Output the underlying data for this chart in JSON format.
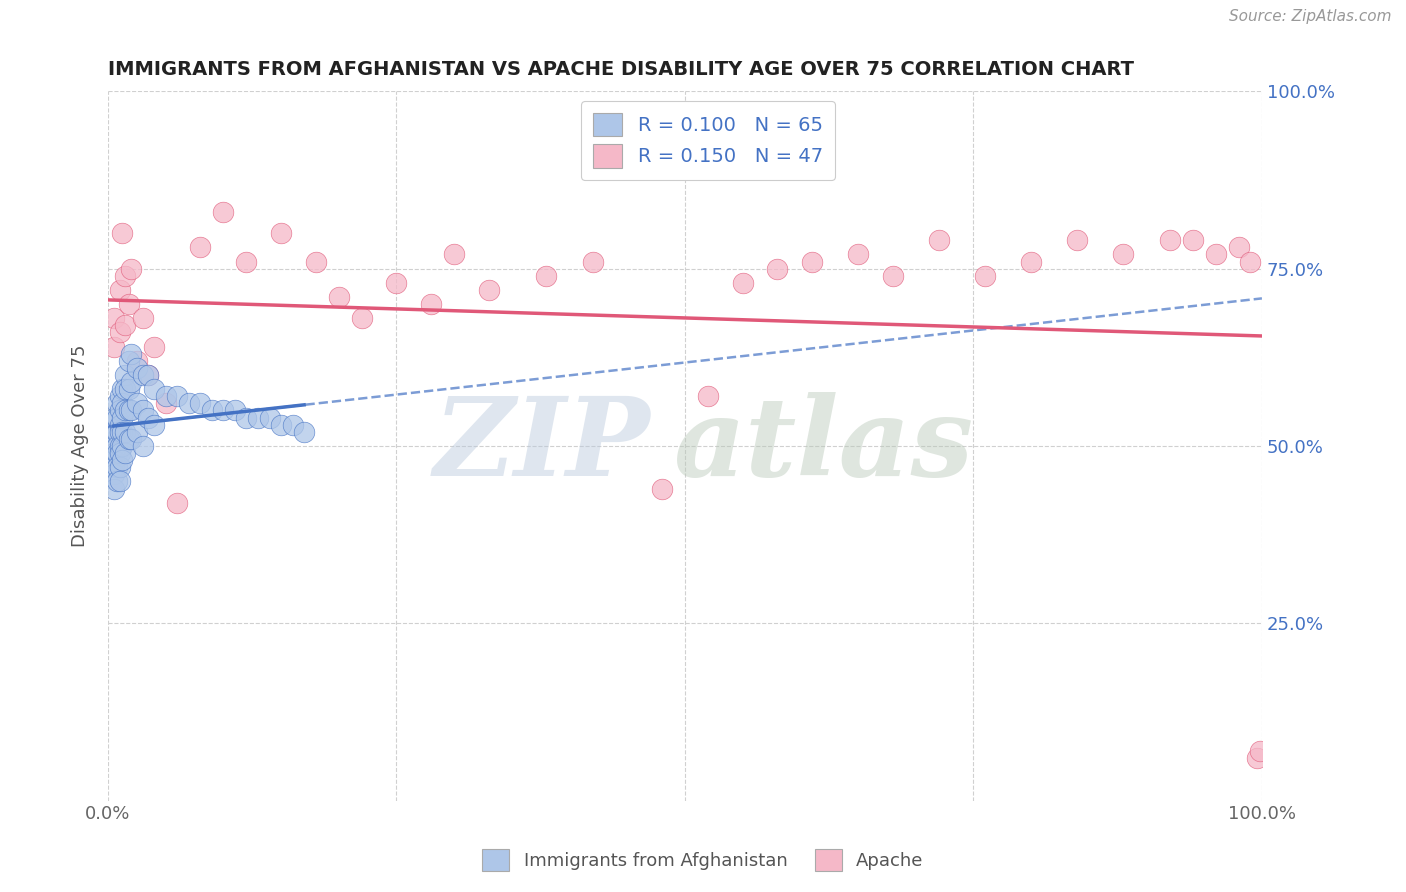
{
  "title": "IMMIGRANTS FROM AFGHANISTAN VS APACHE DISABILITY AGE OVER 75 CORRELATION CHART",
  "source": "Source: ZipAtlas.com",
  "ylabel": "Disability Age Over 75",
  "legend_bottom": [
    "Immigrants from Afghanistan",
    "Apache"
  ],
  "afghanistan_R": 0.1,
  "afghanistan_N": 65,
  "apache_R": 0.15,
  "apache_N": 47,
  "xlim": [
    0.0,
    1.0
  ],
  "ylim": [
    0.0,
    1.0
  ],
  "afghanistan_color": "#aec6e8",
  "apache_color": "#f5b8c8",
  "afghanistan_line_color": "#4472c4",
  "apache_line_color": "#e05878",
  "background_color": "#ffffff",
  "grid_color": "#d0d0d0",
  "afghanistan_x": [
    0.005,
    0.005,
    0.005,
    0.005,
    0.005,
    0.005,
    0.005,
    0.005,
    0.008,
    0.008,
    0.008,
    0.008,
    0.008,
    0.008,
    0.008,
    0.01,
    0.01,
    0.01,
    0.01,
    0.01,
    0.01,
    0.01,
    0.01,
    0.012,
    0.012,
    0.012,
    0.012,
    0.012,
    0.012,
    0.015,
    0.015,
    0.015,
    0.015,
    0.015,
    0.018,
    0.018,
    0.018,
    0.018,
    0.02,
    0.02,
    0.02,
    0.02,
    0.025,
    0.025,
    0.025,
    0.03,
    0.03,
    0.03,
    0.035,
    0.035,
    0.04,
    0.04,
    0.05,
    0.06,
    0.07,
    0.08,
    0.09,
    0.1,
    0.11,
    0.12,
    0.13,
    0.14,
    0.15,
    0.16,
    0.17
  ],
  "afghanistan_y": [
    0.54,
    0.52,
    0.5,
    0.49,
    0.48,
    0.47,
    0.46,
    0.44,
    0.56,
    0.54,
    0.52,
    0.5,
    0.49,
    0.47,
    0.45,
    0.57,
    0.55,
    0.53,
    0.52,
    0.5,
    0.49,
    0.47,
    0.45,
    0.58,
    0.56,
    0.54,
    0.52,
    0.5,
    0.48,
    0.6,
    0.58,
    0.55,
    0.52,
    0.49,
    0.62,
    0.58,
    0.55,
    0.51,
    0.63,
    0.59,
    0.55,
    0.51,
    0.61,
    0.56,
    0.52,
    0.6,
    0.55,
    0.5,
    0.6,
    0.54,
    0.58,
    0.53,
    0.57,
    0.57,
    0.56,
    0.56,
    0.55,
    0.55,
    0.55,
    0.54,
    0.54,
    0.54,
    0.53,
    0.53,
    0.52
  ],
  "apache_x": [
    0.005,
    0.005,
    0.01,
    0.01,
    0.012,
    0.015,
    0.015,
    0.018,
    0.02,
    0.025,
    0.03,
    0.035,
    0.04,
    0.05,
    0.06,
    0.08,
    0.1,
    0.12,
    0.15,
    0.18,
    0.2,
    0.22,
    0.25,
    0.28,
    0.3,
    0.33,
    0.38,
    0.42,
    0.48,
    0.52,
    0.55,
    0.58,
    0.61,
    0.65,
    0.68,
    0.72,
    0.76,
    0.8,
    0.84,
    0.88,
    0.92,
    0.94,
    0.96,
    0.98,
    0.99,
    0.996,
    0.998
  ],
  "apache_y": [
    0.68,
    0.64,
    0.72,
    0.66,
    0.8,
    0.74,
    0.67,
    0.7,
    0.75,
    0.62,
    0.68,
    0.6,
    0.64,
    0.56,
    0.42,
    0.78,
    0.83,
    0.76,
    0.8,
    0.76,
    0.71,
    0.68,
    0.73,
    0.7,
    0.77,
    0.72,
    0.74,
    0.76,
    0.44,
    0.57,
    0.73,
    0.75,
    0.76,
    0.77,
    0.74,
    0.79,
    0.74,
    0.76,
    0.79,
    0.77,
    0.79,
    0.79,
    0.77,
    0.78,
    0.76,
    0.06,
    0.07
  ]
}
